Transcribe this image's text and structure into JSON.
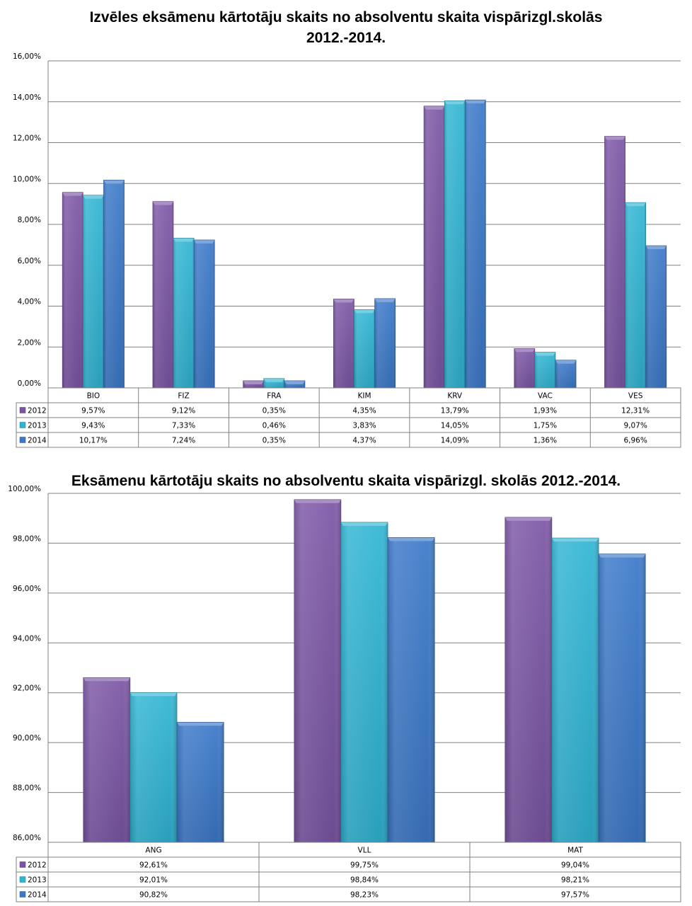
{
  "colors": {
    "2012": "#7b55a5",
    "2013": "#2fb5d4",
    "2014": "#3a78c9",
    "gridline": "#808080",
    "table_border": "#808080"
  },
  "chart_data": [
    {
      "type": "bar",
      "title_line1": "Izvēles eksāmenu kārtotāju skaits no absolventu skaita vispārizgl.skolās",
      "title_line2": "2012.-2014.",
      "xlabel": "",
      "ylabel": "",
      "ylim": [
        0,
        16
      ],
      "ytick_step": 2,
      "yticks": [
        "0,00%",
        "2,00%",
        "4,00%",
        "6,00%",
        "8,00%",
        "10,00%",
        "12,00%",
        "14,00%",
        "16,00%"
      ],
      "grid": true,
      "legend": "data-table-left",
      "categories": [
        "BIO",
        "FIZ",
        "FRA",
        "KIM",
        "KRV",
        "VAC",
        "VES"
      ],
      "series": [
        {
          "name": "2012",
          "values": [
            9.57,
            9.12,
            0.35,
            4.35,
            13.79,
            1.93,
            12.31
          ],
          "labels": [
            "9,57%",
            "9,12%",
            "0,35%",
            "4,35%",
            "13,79%",
            "1,93%",
            "12,31%"
          ]
        },
        {
          "name": "2013",
          "values": [
            9.43,
            7.33,
            0.46,
            3.83,
            14.05,
            1.75,
            9.07
          ],
          "labels": [
            "9,43%",
            "7,33%",
            "0,46%",
            "3,83%",
            "14,05%",
            "1,75%",
            "9,07%"
          ]
        },
        {
          "name": "2014",
          "values": [
            10.17,
            7.24,
            0.35,
            4.37,
            14.09,
            1.36,
            6.96
          ],
          "labels": [
            "10,17%",
            "7,24%",
            "0,35%",
            "4,37%",
            "14,09%",
            "1,36%",
            "6,96%"
          ]
        }
      ]
    },
    {
      "type": "bar",
      "title_line1": "Eksāmenu kārtotāju skaits no absolventu skaita vispārizgl. skolās 2012.-2014.",
      "title_line2": "",
      "xlabel": "",
      "ylabel": "",
      "ylim": [
        86,
        100
      ],
      "ytick_step": 2,
      "yticks": [
        "86,00%",
        "88,00%",
        "90,00%",
        "92,00%",
        "94,00%",
        "96,00%",
        "98,00%",
        "100,00%"
      ],
      "grid": true,
      "legend": "data-table-left",
      "categories": [
        "ANG",
        "VLL",
        "MAT"
      ],
      "series": [
        {
          "name": "2012",
          "values": [
            92.61,
            99.75,
            99.04
          ],
          "labels": [
            "92,61%",
            "99,75%",
            "99,04%"
          ]
        },
        {
          "name": "2013",
          "values": [
            92.01,
            98.84,
            98.21
          ],
          "labels": [
            "92,01%",
            "98,84%",
            "98,21%"
          ]
        },
        {
          "name": "2014",
          "values": [
            90.82,
            98.23,
            97.57
          ],
          "labels": [
            "90,82%",
            "98,23%",
            "97,57%"
          ]
        }
      ]
    }
  ]
}
